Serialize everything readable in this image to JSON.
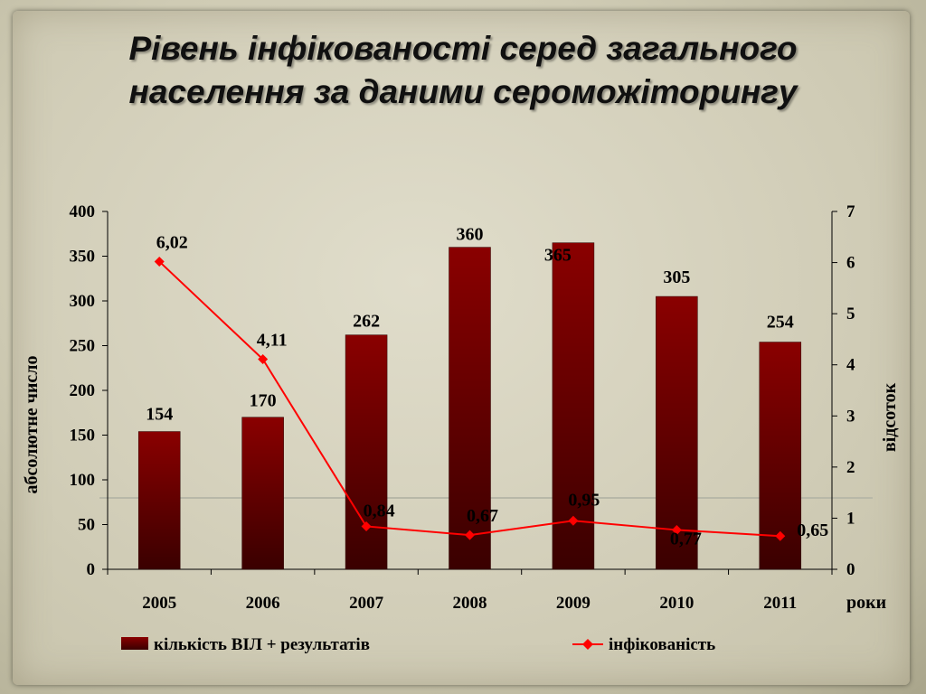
{
  "title_line1": "Рівень інфікованості серед загального",
  "title_line2": "населення за даними сероможіторингу",
  "chart_data": {
    "type": "bar",
    "categories": [
      "2005",
      "2006",
      "2007",
      "2008",
      "2009",
      "2010",
      "2011"
    ],
    "xlabel": "роки",
    "ylabel": "абсолютне число",
    "y2label": "відсоток",
    "ylim": [
      0,
      400
    ],
    "yticks": [
      0,
      50,
      100,
      150,
      200,
      250,
      300,
      350,
      400
    ],
    "y2lim": [
      0,
      7
    ],
    "y2ticks": [
      0,
      1,
      2,
      3,
      4,
      5,
      6,
      7
    ],
    "series": [
      {
        "name": "кількість ВІЛ + результатів",
        "type": "bar",
        "axis": "left",
        "color": "#7a0000",
        "values": [
          154,
          170,
          262,
          360,
          365,
          305,
          254
        ],
        "labels": [
          "154",
          "170",
          "262",
          "360",
          "365",
          "305",
          "254"
        ]
      },
      {
        "name": "інфікованість",
        "type": "line",
        "axis": "right",
        "color": "#ff0000",
        "values": [
          6.02,
          4.11,
          0.84,
          0.67,
          0.95,
          0.77,
          0.65
        ],
        "labels": [
          "6,02",
          "4,11",
          "0,84",
          "0,67",
          "0,95",
          "0,77",
          "0,65"
        ]
      }
    ],
    "grid": false,
    "legend": "bottom"
  }
}
